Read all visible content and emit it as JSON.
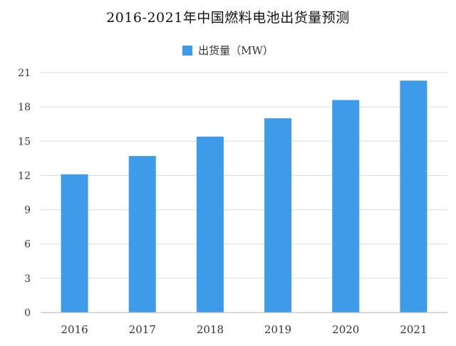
{
  "chart_data": {
    "type": "bar",
    "title": "2016-2021年中国燃料电池出货量预测",
    "categories": [
      "2016",
      "2017",
      "2018",
      "2019",
      "2020",
      "2021"
    ],
    "series": [
      {
        "name": "出货量（MW）",
        "values": [
          12.1,
          13.7,
          15.4,
          17.0,
          18.6,
          20.3
        ]
      }
    ],
    "xlabel": "",
    "ylabel": "",
    "ylim": [
      0,
      21
    ],
    "yticks": [
      "0",
      "3",
      "6",
      "9",
      "12",
      "15",
      "18",
      "21"
    ],
    "grid": true,
    "legend_position": "top-center"
  },
  "colors": {
    "bar": "#3d9be9",
    "grid": "#d9d9d9",
    "axis": "#bfbfbf"
  }
}
